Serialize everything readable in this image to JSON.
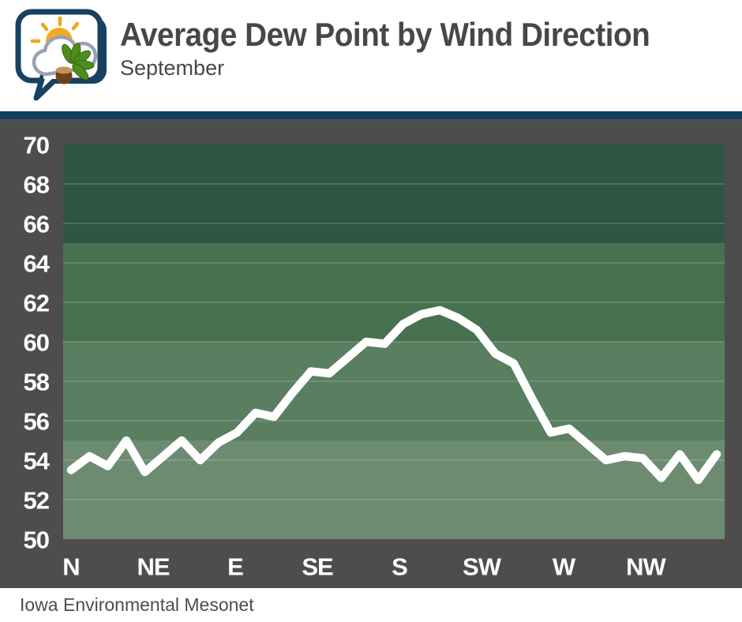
{
  "header": {
    "title": "Average Dew Point by Wind Direction",
    "subtitle": "September"
  },
  "footer": {
    "attribution": "Iowa Environmental Mesonet"
  },
  "colors": {
    "header_bg": "#ffffff",
    "divider": "#0e3f60",
    "chart_bg": "#4d4d4d",
    "title_text": "#474747",
    "axis_text": "#ffffff",
    "grid_line": "rgba(255,255,255,0.2)",
    "band_colors": [
      "#2d5742",
      "#47714f",
      "#5a7e60",
      "#6d8b70"
    ],
    "logo_navy": "#17415f",
    "logo_sun": "#f3ab25",
    "logo_leaf": "#4f8c1d",
    "logo_acorn": "#6e4118"
  },
  "chart_data": {
    "type": "line",
    "title": "Average Dew Point by Wind Direction",
    "subtitle": "September",
    "xlabel": "",
    "ylabel": "",
    "x_tick_labels": [
      "N",
      "NE",
      "E",
      "SE",
      "S",
      "SW",
      "W",
      "NW"
    ],
    "y_ticks": [
      50,
      52,
      54,
      56,
      58,
      60,
      62,
      64,
      66,
      68,
      70
    ],
    "ylim": [
      50,
      70
    ],
    "grid": true,
    "legend": "none",
    "line_color": "#ffffff",
    "x_degrees_start": 0,
    "x_bin_degrees": 10,
    "values": [
      53.5,
      54.2,
      53.7,
      55.0,
      53.4,
      54.2,
      55.0,
      54.0,
      54.9,
      55.4,
      56.4,
      56.2,
      57.4,
      58.5,
      58.4,
      59.2,
      60.0,
      59.9,
      60.9,
      61.4,
      61.6,
      61.2,
      60.6,
      59.4,
      58.9,
      57.1,
      55.4,
      55.6,
      54.8,
      54.0,
      54.2,
      54.1,
      53.1,
      54.3,
      53.0,
      54.3
    ]
  }
}
